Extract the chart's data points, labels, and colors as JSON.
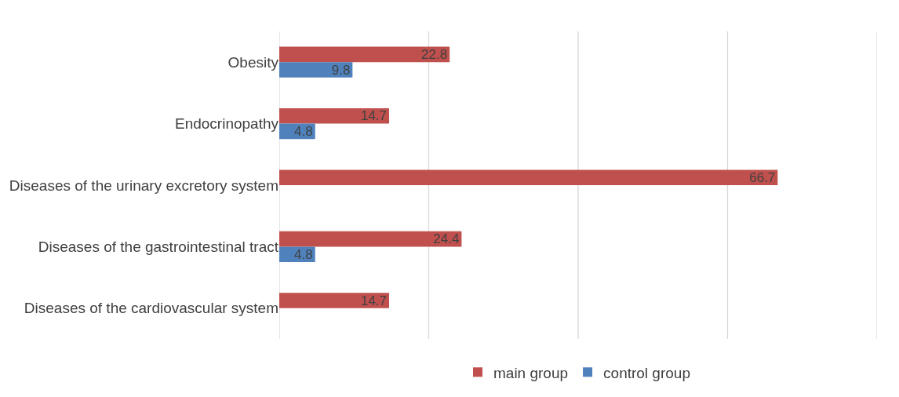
{
  "chart_data": {
    "type": "bar",
    "orientation": "horizontal",
    "categories": [
      "Obesity",
      "Endocrinopathy",
      "Diseases of the urinary excretory system",
      "Diseases of the gastrointestinal tract",
      "Diseases of the cardiovascular system"
    ],
    "series": [
      {
        "name": "main group",
        "color": "#c0504d",
        "values": [
          22.8,
          14.7,
          66.7,
          24.4,
          14.7
        ]
      },
      {
        "name": "control group",
        "color": "#4f81bd",
        "values": [
          9.8,
          4.8,
          null,
          4.8,
          null
        ]
      }
    ],
    "xlim": [
      0,
      80
    ],
    "xticks": [
      {
        "value": 0,
        "label": null
      },
      {
        "value": 20,
        "label": null
      },
      {
        "value": 40,
        "label": null
      },
      {
        "value": 60,
        "label": null
      },
      {
        "value": 80,
        "label": null
      }
    ],
    "tick_labels": "y",
    "grid": "x",
    "legend": "bottom",
    "data_labels": true
  }
}
